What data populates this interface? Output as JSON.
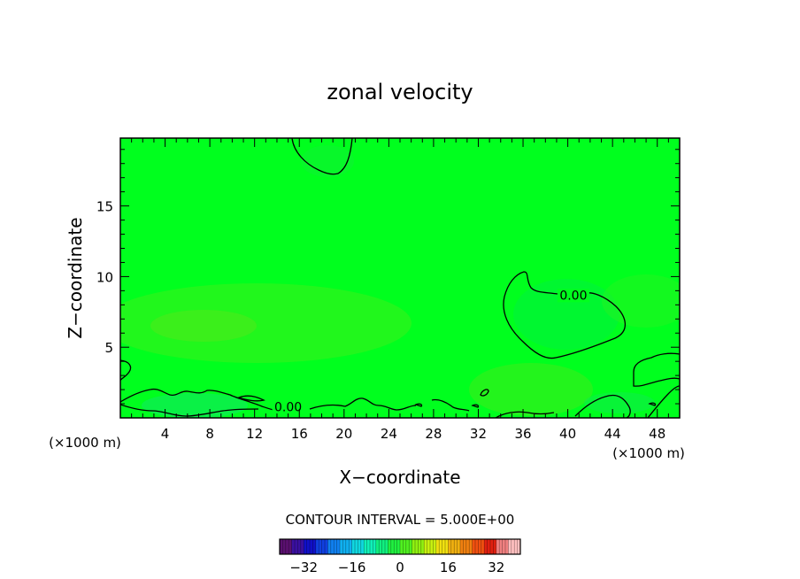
{
  "chart_data": {
    "type": "contour",
    "title": "zonal velocity",
    "xlabel": "X−coordinate",
    "ylabel": "Z−coordinate",
    "x_unit_left": "(×1000 m)",
    "x_unit_right": "(×1000 m)",
    "xlim": [
      0,
      50
    ],
    "ylim": [
      0,
      19.8
    ],
    "xticks": [
      4,
      8,
      12,
      16,
      20,
      24,
      28,
      32,
      36,
      40,
      44,
      48
    ],
    "yticks": [
      5,
      10,
      15
    ],
    "field_color": "#00ff1e",
    "contour_level_label": "0.00",
    "contour_labels": [
      {
        "text": "0.00",
        "x": 40.5,
        "y": 8.5
      },
      {
        "text": "0.00",
        "x": 15.0,
        "y": 0.6
      }
    ],
    "contour_interval_text": "CONTOUR INTERVAL = 5.000E+00",
    "colorbar": {
      "min": -40,
      "max": 40,
      "ticks": [
        -32,
        -16,
        0,
        16,
        32
      ],
      "colors": [
        "#5a1070",
        "#3a10a0",
        "#1010c8",
        "#1040e0",
        "#1080f0",
        "#10b0f0",
        "#10d8e0",
        "#10f0b8",
        "#10f080",
        "#20f040",
        "#50f020",
        "#90f010",
        "#c8f010",
        "#f0e010",
        "#f0b010",
        "#f08010",
        "#f05010",
        "#e02010",
        "#f08080",
        "#ffc0c0"
      ]
    }
  }
}
